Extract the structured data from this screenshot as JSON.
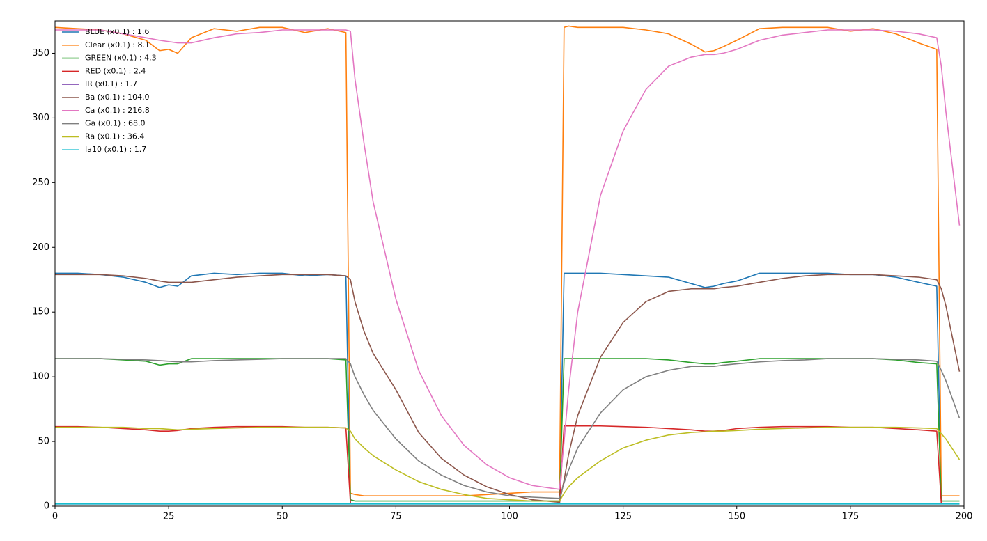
{
  "chart_data": {
    "type": "line",
    "x": [
      0,
      5,
      10,
      15,
      20,
      23,
      25,
      27,
      30,
      35,
      40,
      45,
      50,
      55,
      60,
      64,
      65,
      66,
      68,
      70,
      75,
      80,
      85,
      90,
      95,
      100,
      105,
      111,
      112,
      113,
      115,
      120,
      125,
      130,
      135,
      140,
      143,
      145,
      147,
      150,
      155,
      160,
      165,
      170,
      175,
      180,
      185,
      190,
      194,
      195,
      196,
      199
    ],
    "xlim": [
      0,
      200
    ],
    "xticks": [
      0,
      25,
      50,
      75,
      100,
      125,
      150,
      175,
      200
    ],
    "ylim": [
      0,
      375
    ],
    "yticks": [
      0,
      50,
      100,
      150,
      200,
      250,
      300,
      350
    ],
    "legend": "upper left",
    "series": [
      {
        "name": "BLUE (x0.1) : 1.6",
        "color": "#1f77b4",
        "values": [
          180,
          180,
          179,
          177,
          173,
          169,
          171,
          170,
          178,
          180,
          179,
          180,
          180,
          178,
          179,
          178,
          2,
          2,
          2,
          2,
          2,
          2,
          2,
          2,
          2,
          2,
          2,
          2,
          180,
          180,
          180,
          180,
          179,
          178,
          177,
          172,
          169,
          170,
          172,
          174,
          180,
          180,
          180,
          180,
          179,
          179,
          177,
          173,
          170,
          2,
          2,
          2
        ]
      },
      {
        "name": "Clear (x0.1) : 8.1",
        "color": "#ff7f0e",
        "values": [
          370,
          369,
          368,
          365,
          360,
          352,
          353,
          350,
          362,
          369,
          367,
          370,
          370,
          366,
          369,
          366,
          10,
          9,
          8,
          8,
          8,
          8,
          8,
          8,
          9,
          10,
          11,
          11,
          370,
          371,
          370,
          370,
          370,
          368,
          365,
          357,
          351,
          352,
          355,
          360,
          369,
          370,
          370,
          370,
          367,
          369,
          365,
          358,
          353,
          8,
          8,
          8
        ]
      },
      {
        "name": "GREEN (x0.1) : 4.3",
        "color": "#2ca02c",
        "values": [
          114,
          114,
          114,
          113,
          112,
          109,
          110,
          110,
          114,
          114,
          114,
          114,
          114,
          114,
          114,
          113,
          5,
          4,
          4,
          4,
          4,
          4,
          4,
          4,
          4,
          4,
          4,
          4,
          114,
          114,
          114,
          114,
          114,
          114,
          113,
          111,
          110,
          110,
          111,
          112,
          114,
          114,
          114,
          114,
          114,
          114,
          113,
          111,
          110,
          4,
          4,
          4
        ]
      },
      {
        "name": "RED (x0.1) : 2.4",
        "color": "#d62728",
        "values": [
          61.5,
          61.5,
          61,
          60,
          59,
          58,
          58,
          58.5,
          60,
          61,
          61.5,
          61.5,
          61.5,
          61,
          61,
          60.5,
          2,
          2,
          2,
          2,
          2,
          2,
          2,
          2,
          2,
          2,
          2,
          2,
          62,
          62,
          62,
          62,
          61.5,
          61,
          60,
          59,
          58,
          58,
          58.5,
          60,
          61,
          61.5,
          61.5,
          61.5,
          61,
          61,
          60,
          59,
          58,
          2,
          2,
          2
        ]
      },
      {
        "name": "IR (x0.1) : 1.7",
        "color": "#9467bd",
        "values": [
          1.7,
          1.7,
          1.7,
          1.7,
          1.7,
          1.7,
          1.7,
          1.7,
          1.7,
          1.7,
          1.7,
          1.7,
          1.7,
          1.7,
          1.7,
          1.7,
          1.7,
          1.7,
          1.7,
          1.7,
          1.7,
          1.7,
          1.7,
          1.7,
          1.7,
          1.7,
          1.7,
          1.7,
          1.7,
          1.7,
          1.7,
          1.7,
          1.7,
          1.7,
          1.7,
          1.7,
          1.7,
          1.7,
          1.7,
          1.7,
          1.7,
          1.7,
          1.7,
          1.7,
          1.7,
          1.7,
          1.7,
          1.7,
          1.7,
          1.7,
          1.7,
          1.7
        ]
      },
      {
        "name": "Ba (x0.1) : 104.0",
        "color": "#8c564b",
        "values": [
          179,
          179,
          179,
          178,
          176,
          174,
          173,
          173,
          173,
          175,
          177,
          178,
          179,
          179,
          179,
          178,
          175,
          158,
          135,
          118,
          90,
          57,
          37,
          24,
          15,
          9,
          5,
          3,
          20,
          40,
          70,
          115,
          142,
          158,
          166,
          168,
          168,
          168,
          169,
          170,
          173,
          176,
          178,
          179,
          179,
          179,
          178,
          177,
          175,
          168,
          155,
          104
        ]
      },
      {
        "name": "Ca (x0.1) : 216.8",
        "color": "#e377c2",
        "values": [
          368,
          368,
          368,
          365,
          362,
          360,
          359,
          358,
          358,
          362,
          365,
          366,
          368,
          368,
          368,
          368,
          367,
          330,
          280,
          235,
          160,
          105,
          70,
          47,
          32,
          22,
          16,
          13,
          50,
          90,
          150,
          240,
          290,
          322,
          340,
          347,
          349,
          349,
          350,
          353,
          360,
          364,
          366,
          368,
          368,
          368,
          367,
          365,
          362,
          340,
          305,
          217
        ]
      },
      {
        "name": "Ga (x0.1) : 68.0",
        "color": "#7f7f7f",
        "values": [
          114,
          114,
          114,
          113.5,
          113,
          112.5,
          112,
          111.5,
          111.5,
          112.5,
          113,
          113.5,
          114,
          114,
          114,
          114,
          110,
          100,
          86,
          74,
          52,
          35,
          24,
          16,
          11,
          8,
          7,
          6,
          18,
          28,
          45,
          72,
          90,
          100,
          105,
          108,
          108,
          108,
          109,
          110,
          111.5,
          112.5,
          113,
          114,
          114,
          114,
          113.5,
          113,
          112,
          105,
          97,
          68
        ]
      },
      {
        "name": "Ra (x0.1) : 36.4",
        "color": "#bcbd22",
        "values": [
          61,
          61,
          61,
          61,
          60,
          60,
          59.5,
          59,
          59.5,
          60,
          60.5,
          61,
          61,
          61,
          61,
          60.5,
          58,
          52,
          45,
          39,
          28,
          19,
          13,
          9,
          6,
          5,
          4,
          4,
          10,
          15,
          22,
          35,
          45,
          51,
          55,
          57,
          57.5,
          58,
          58,
          58.5,
          59.5,
          60,
          60.5,
          61,
          61,
          61,
          61,
          60.5,
          60,
          56,
          52,
          36
        ]
      },
      {
        "name": "Ia10 (x0.1) : 1.7",
        "color": "#17becf",
        "values": [
          1.7,
          1.7,
          1.7,
          1.7,
          1.7,
          1.7,
          1.7,
          1.7,
          1.7,
          1.7,
          1.7,
          1.7,
          1.7,
          1.7,
          1.7,
          1.7,
          1.7,
          1.7,
          1.7,
          1.7,
          1.7,
          1.7,
          1.7,
          1.7,
          1.7,
          1.7,
          1.7,
          1.7,
          1.7,
          1.7,
          1.7,
          1.7,
          1.7,
          1.7,
          1.7,
          1.7,
          1.7,
          1.7,
          1.7,
          1.7,
          1.7,
          1.7,
          1.7,
          1.7,
          1.7,
          1.7,
          1.7,
          1.7,
          1.7,
          1.7,
          1.7,
          1.7
        ]
      }
    ]
  }
}
